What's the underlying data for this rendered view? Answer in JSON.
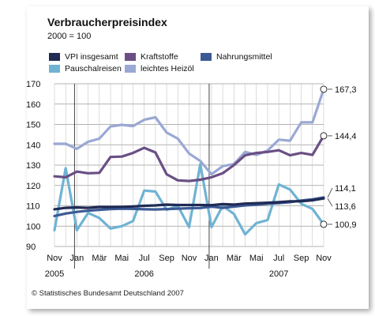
{
  "title": "Verbraucherpreisindex",
  "subtitle": "2000 = 100",
  "credit": "© Statistisches Bundesamt Deutschland 2007",
  "chart_data": {
    "type": "line",
    "ylim": [
      90,
      170
    ],
    "yticks": [
      90,
      100,
      110,
      120,
      130,
      140,
      150,
      160,
      170
    ],
    "x_tick_labels": [
      "Nov",
      "Jan",
      "Mär",
      "Mai",
      "Jul",
      "Sep",
      "Nov",
      "Jan",
      "Mär",
      "Mai",
      "Jul",
      "Sep",
      "Nov"
    ],
    "year_labels": [
      {
        "label": "2005",
        "at_month_index": 0
      },
      {
        "label": "2006",
        "at_month_index": 8
      },
      {
        "label": "2007",
        "at_month_index": 20
      }
    ],
    "months_count": 25,
    "grid": true,
    "series": [
      {
        "name": "VPI insgesamt",
        "color": "#1f2a55",
        "values": [
          108.3,
          109.0,
          109.2,
          109.0,
          109.4,
          109.4,
          109.5,
          109.7,
          110.0,
          110.2,
          110.6,
          110.4,
          110.4,
          110.4,
          110.3,
          110.8,
          110.6,
          111.1,
          111.3,
          111.5,
          111.8,
          112.2,
          112.2,
          112.7,
          113.6
        ],
        "end_label": "113,6"
      },
      {
        "name": "Kraftstoffe",
        "color": "#6a4f84",
        "values": [
          124.5,
          124.0,
          126.8,
          126.0,
          126.2,
          134.0,
          134.2,
          136.0,
          138.5,
          136.2,
          125.5,
          122.5,
          122.2,
          122.8,
          124.0,
          126.0,
          130.0,
          134.8,
          136.0,
          136.5,
          137.3,
          134.8,
          136.0,
          135.0,
          144.4
        ],
        "end_label": "144,4"
      },
      {
        "name": "Nahrungsmittel",
        "color": "#3b5a95",
        "values": [
          105.0,
          106.2,
          107.0,
          107.6,
          108.0,
          108.4,
          108.6,
          108.5,
          108.3,
          108.2,
          108.4,
          108.6,
          108.8,
          108.9,
          109.6,
          109.0,
          109.6,
          110.2,
          110.5,
          111.0,
          111.3,
          111.8,
          112.6,
          113.2,
          114.1
        ],
        "end_label": "114,1"
      },
      {
        "name": "Pauschalreisen",
        "color": "#6fb3d3",
        "values": [
          98.0,
          128.5,
          98.0,
          106.5,
          104.0,
          98.8,
          100.0,
          102.5,
          117.5,
          117.0,
          108.0,
          110.0,
          99.5,
          130.5,
          99.5,
          110.0,
          106.0,
          96.0,
          101.5,
          103.0,
          120.5,
          118.0,
          111.0,
          108.5,
          100.9
        ],
        "end_label": "100,9"
      },
      {
        "name": "leichtes Heizöl",
        "color": "#9aa8d4",
        "values": [
          140.5,
          140.5,
          138.0,
          141.5,
          143.0,
          149.0,
          149.8,
          149.2,
          152.3,
          153.5,
          146.0,
          143.0,
          135.7,
          132.0,
          125.5,
          129.5,
          130.5,
          136.5,
          135.0,
          137.2,
          142.5,
          142.0,
          151.0,
          151.0,
          167.3
        ],
        "end_label": "167,3"
      }
    ]
  }
}
